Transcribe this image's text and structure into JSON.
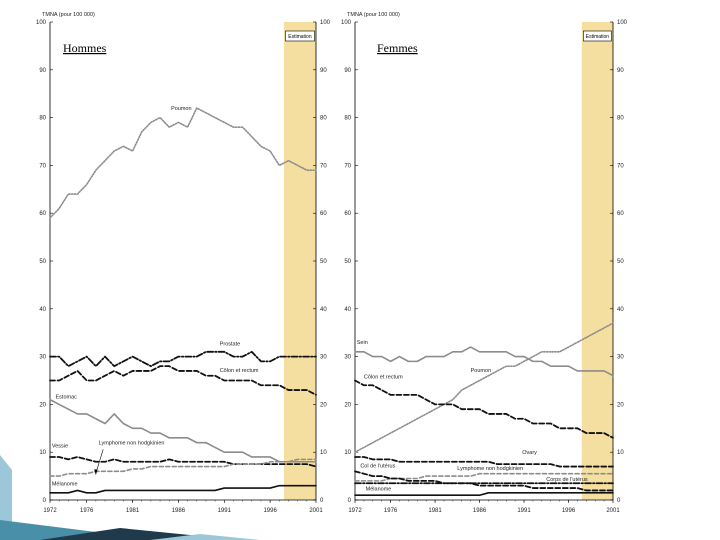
{
  "chart_data": [
    {
      "type": "line",
      "panel": "men",
      "title": "Hommes",
      "ylabel": "TMNA (pour 100 000)",
      "xlabel": "",
      "ylim": [
        0,
        100
      ],
      "yticks": [
        "0",
        "10",
        "20",
        "30",
        "40",
        "50",
        "60",
        "70",
        "80",
        "90",
        "100"
      ],
      "xticks": [
        "1972",
        "1976",
        "1981",
        "1986",
        "1991",
        "1996",
        "2001"
      ],
      "estimate_label": "Estimation",
      "estimate_range": [
        1997.5,
        2001
      ],
      "grid": false,
      "series": [
        {
          "name": "Poumon",
          "style": "dotted-light",
          "x": [
            1972,
            1973,
            1974,
            1975,
            1976,
            1977,
            1978,
            1979,
            1980,
            1981,
            1982,
            1983,
            1984,
            1985,
            1986,
            1987,
            1988,
            1989,
            1990,
            1991,
            1992,
            1993,
            1994,
            1995,
            1996,
            1997,
            1998,
            1999,
            2000,
            2001
          ],
          "values": [
            59,
            61,
            64,
            64,
            66,
            69,
            71,
            73,
            74,
            73,
            77,
            79,
            80,
            78,
            79,
            78,
            82,
            81,
            80,
            79,
            78,
            78,
            76,
            74,
            73,
            70,
            71,
            70,
            69,
            69
          ]
        },
        {
          "name": "Prostate",
          "style": "dashdot",
          "x": [
            1972,
            1973,
            1974,
            1975,
            1976,
            1977,
            1978,
            1979,
            1980,
            1981,
            1982,
            1983,
            1984,
            1985,
            1986,
            1987,
            1988,
            1989,
            1990,
            1991,
            1992,
            1993,
            1994,
            1995,
            1996,
            1997,
            1998,
            1999,
            2000,
            2001
          ],
          "values": [
            30,
            30,
            28,
            29,
            30,
            28,
            30,
            28,
            29,
            30,
            29,
            28,
            29,
            29,
            30,
            30,
            30,
            31,
            31,
            31,
            30,
            30,
            31,
            29,
            29,
            30,
            30,
            30,
            30,
            30
          ]
        },
        {
          "name": "Côlon et rectum",
          "style": "dashed-heavy",
          "x": [
            1972,
            1973,
            1974,
            1975,
            1976,
            1977,
            1978,
            1979,
            1980,
            1981,
            1982,
            1983,
            1984,
            1985,
            1986,
            1987,
            1988,
            1989,
            1990,
            1991,
            1992,
            1993,
            1994,
            1995,
            1996,
            1997,
            1998,
            1999,
            2000,
            2001
          ],
          "values": [
            25,
            25,
            26,
            27,
            25,
            25,
            26,
            27,
            26,
            27,
            27,
            27,
            28,
            28,
            27,
            27,
            27,
            26,
            26,
            25,
            25,
            25,
            25,
            24,
            24,
            24,
            23,
            23,
            23,
            22
          ]
        },
        {
          "name": "Estomac",
          "style": "solid-gray",
          "x": [
            1972,
            1973,
            1974,
            1975,
            1976,
            1977,
            1978,
            1979,
            1980,
            1981,
            1982,
            1983,
            1984,
            1985,
            1986,
            1987,
            1988,
            1989,
            1990,
            1991,
            1992,
            1993,
            1994,
            1995,
            1996,
            1997,
            1998,
            1999,
            2000,
            2001
          ],
          "values": [
            21,
            20,
            19,
            18,
            18,
            17,
            16,
            18,
            16,
            15,
            15,
            14,
            14,
            13,
            13,
            13,
            12,
            12,
            11,
            10,
            10,
            10,
            9,
            9,
            9,
            8,
            8,
            8,
            8,
            8
          ]
        },
        {
          "name": "Vessie",
          "style": "dashed-heavy",
          "x": [
            1972,
            1973,
            1974,
            1975,
            1976,
            1977,
            1978,
            1979,
            1980,
            1981,
            1982,
            1983,
            1984,
            1985,
            1986,
            1987,
            1988,
            1989,
            1990,
            1991,
            1992,
            1993,
            1994,
            1995,
            1996,
            1997,
            1998,
            1999,
            2000,
            2001
          ],
          "values": [
            9,
            9,
            8.5,
            9,
            8.5,
            8,
            8,
            8.5,
            8,
            8,
            8,
            8,
            8,
            8.5,
            8,
            8,
            8,
            8,
            8,
            8,
            7.5,
            7.5,
            7.5,
            7.5,
            7.5,
            7.5,
            7.5,
            7.5,
            7.5,
            7
          ]
        },
        {
          "name": "Lymphome non hodgkinien",
          "style": "dashed-light",
          "x": [
            1972,
            1973,
            1974,
            1975,
            1976,
            1977,
            1978,
            1979,
            1980,
            1981,
            1982,
            1983,
            1984,
            1985,
            1986,
            1987,
            1988,
            1989,
            1990,
            1991,
            1992,
            1993,
            1994,
            1995,
            1996,
            1997,
            1998,
            1999,
            2000,
            2001
          ],
          "values": [
            5,
            5,
            5.5,
            5.5,
            5.5,
            6,
            6,
            6,
            6,
            6.5,
            6.5,
            7,
            7,
            7,
            7,
            7,
            7,
            7,
            7,
            7,
            7.5,
            7.5,
            7.5,
            7.5,
            8,
            8,
            8,
            8.5,
            8.5,
            8.5
          ]
        },
        {
          "name": "Mélanome",
          "style": "solid-black",
          "x": [
            1972,
            1973,
            1974,
            1975,
            1976,
            1977,
            1978,
            1979,
            1980,
            1981,
            1982,
            1983,
            1984,
            1985,
            1986,
            1987,
            1988,
            1989,
            1990,
            1991,
            1992,
            1993,
            1994,
            1995,
            1996,
            1997,
            1998,
            1999,
            2000,
            2001
          ],
          "values": [
            1.5,
            1.5,
            1.5,
            2,
            1.5,
            1.5,
            2,
            2,
            2,
            2,
            2,
            2,
            2,
            2,
            2,
            2,
            2,
            2,
            2,
            2.5,
            2.5,
            2.5,
            2.5,
            2.5,
            2.5,
            3,
            3,
            3,
            3,
            3
          ]
        }
      ]
    },
    {
      "type": "line",
      "panel": "women",
      "title": "Femmes",
      "ylabel": "TMNA (pour 100 000)",
      "xlabel": "",
      "ylim": [
        0,
        100
      ],
      "yticks": [
        "0",
        "10",
        "20",
        "30",
        "40",
        "50",
        "60",
        "70",
        "80",
        "90",
        "100"
      ],
      "xticks": [
        "1972",
        "1976",
        "1981",
        "1986",
        "1991",
        "1996",
        "2001"
      ],
      "estimate_label": "Estimation",
      "estimate_range": [
        1997.5,
        2001
      ],
      "grid": false,
      "series": [
        {
          "name": "Sein",
          "style": "solid-gray",
          "x": [
            1972,
            1973,
            1974,
            1975,
            1976,
            1977,
            1978,
            1979,
            1980,
            1981,
            1982,
            1983,
            1984,
            1985,
            1986,
            1987,
            1988,
            1989,
            1990,
            1991,
            1992,
            1993,
            1994,
            1995,
            1996,
            1997,
            1998,
            1999,
            2000,
            2001
          ],
          "values": [
            31,
            31,
            30,
            30,
            29,
            30,
            29,
            29,
            30,
            30,
            30,
            31,
            31,
            32,
            31,
            31,
            31,
            31,
            30,
            30,
            29,
            29,
            28,
            28,
            28,
            27,
            27,
            27,
            27,
            26
          ]
        },
        {
          "name": "Poumon",
          "style": "dotted-light",
          "x": [
            1972,
            1973,
            1974,
            1975,
            1976,
            1977,
            1978,
            1979,
            1980,
            1981,
            1982,
            1983,
            1984,
            1985,
            1986,
            1987,
            1988,
            1989,
            1990,
            1991,
            1992,
            1993,
            1994,
            1995,
            1996,
            1997,
            1998,
            1999,
            2000,
            2001
          ],
          "values": [
            10,
            11,
            12,
            13,
            14,
            15,
            16,
            17,
            18,
            19,
            20,
            21,
            23,
            24,
            25,
            26,
            27,
            28,
            28,
            29,
            30,
            31,
            31,
            31,
            32,
            33,
            34,
            35,
            36,
            37
          ]
        },
        {
          "name": "Côlon et rectum",
          "style": "dashed-heavy",
          "x": [
            1972,
            1973,
            1974,
            1975,
            1976,
            1977,
            1978,
            1979,
            1980,
            1981,
            1982,
            1983,
            1984,
            1985,
            1986,
            1987,
            1988,
            1989,
            1990,
            1991,
            1992,
            1993,
            1994,
            1995,
            1996,
            1997,
            1998,
            1999,
            2000,
            2001
          ],
          "values": [
            25,
            24,
            24,
            23,
            22,
            22,
            22,
            22,
            21,
            20,
            20,
            20,
            19,
            19,
            19,
            18,
            18,
            18,
            17,
            17,
            16,
            16,
            16,
            15,
            15,
            15,
            14,
            14,
            14,
            13
          ]
        },
        {
          "name": "Ovary",
          "style": "dashed-heavy",
          "x": [
            1972,
            1973,
            1974,
            1975,
            1976,
            1977,
            1978,
            1979,
            1980,
            1981,
            1982,
            1983,
            1984,
            1985,
            1986,
            1987,
            1988,
            1989,
            1990,
            1991,
            1992,
            1993,
            1994,
            1995,
            1996,
            1997,
            1998,
            1999,
            2000,
            2001
          ],
          "values": [
            9,
            9,
            8.5,
            8.5,
            8.5,
            8,
            8,
            8,
            8,
            8,
            8,
            8,
            8,
            8,
            8,
            8,
            7.5,
            7.5,
            7.5,
            7.5,
            7.5,
            7.5,
            7.5,
            7,
            7,
            7,
            7,
            7,
            7,
            7
          ]
        },
        {
          "name": "Lymphome non hodgkinien",
          "style": "dashed-light",
          "x": [
            1972,
            1973,
            1974,
            1975,
            1976,
            1977,
            1978,
            1979,
            1980,
            1981,
            1982,
            1983,
            1984,
            1985,
            1986,
            1987,
            1988,
            1989,
            1990,
            1991,
            1992,
            1993,
            1994,
            1995,
            1996,
            1997,
            1998,
            1999,
            2000,
            2001
          ],
          "values": [
            4,
            4,
            4,
            4,
            4.5,
            4.5,
            4.5,
            4.5,
            5,
            5,
            5,
            5,
            5,
            5,
            5.5,
            5.5,
            5.5,
            5.5,
            5.5,
            5.5,
            5.5,
            5.5,
            5.5,
            5.5,
            5.5,
            5.5,
            5.5,
            5.5,
            5.5,
            5.5
          ]
        },
        {
          "name": "Col de l'utérus",
          "style": "dashed-heavy",
          "x": [
            1972,
            1973,
            1974,
            1975,
            1976,
            1977,
            1978,
            1979,
            1980,
            1981,
            1982,
            1983,
            1984,
            1985,
            1986,
            1987,
            1988,
            1989,
            1990,
            1991,
            1992,
            1993,
            1994,
            1995,
            1996,
            1997,
            1998,
            1999,
            2000,
            2001
          ],
          "values": [
            6,
            5.5,
            5,
            5,
            4.5,
            4.5,
            4,
            4,
            4,
            4,
            3.5,
            3.5,
            3.5,
            3.5,
            3,
            3,
            3,
            3,
            3,
            3,
            2.5,
            2.5,
            2.5,
            2.5,
            2.5,
            2.5,
            2,
            2,
            2,
            2
          ]
        },
        {
          "name": "Corps de l'utérus",
          "style": "dashdot",
          "x": [
            1972,
            1973,
            1974,
            1975,
            1976,
            1977,
            1978,
            1979,
            1980,
            1981,
            1982,
            1983,
            1984,
            1985,
            1986,
            1987,
            1988,
            1989,
            1990,
            1991,
            1992,
            1993,
            1994,
            1995,
            1996,
            1997,
            1998,
            1999,
            2000,
            2001
          ],
          "values": [
            3.5,
            3.5,
            3.5,
            3.5,
            3.5,
            3.5,
            3.5,
            3.5,
            3.5,
            3.5,
            3.5,
            3.5,
            3.5,
            3.5,
            3.5,
            3.5,
            3.5,
            3.5,
            3.5,
            3.5,
            3.5,
            3.5,
            3.5,
            3.5,
            3.5,
            3.5,
            3.5,
            3.5,
            3.5,
            3.5
          ]
        },
        {
          "name": "Mélanome",
          "style": "solid-black",
          "x": [
            1972,
            1973,
            1974,
            1975,
            1976,
            1977,
            1978,
            1979,
            1980,
            1981,
            1982,
            1983,
            1984,
            1985,
            1986,
            1987,
            1988,
            1989,
            1990,
            1991,
            1992,
            1993,
            1994,
            1995,
            1996,
            1997,
            1998,
            1999,
            2000,
            2001
          ],
          "values": [
            1,
            1,
            1,
            1,
            1,
            1,
            1,
            1,
            1,
            1,
            1,
            1,
            1,
            1,
            1,
            1.5,
            1.5,
            1.5,
            1.5,
            1.5,
            1.5,
            1.5,
            1.5,
            1.5,
            1.5,
            1.5,
            1.5,
            1.5,
            1.5,
            1.5
          ]
        }
      ]
    }
  ],
  "labels": {
    "men": {
      "poumon": "Poumon",
      "prostate": "Prostate",
      "colon": "Côlon et rectum",
      "estomac": "Estomac",
      "vessie": "Vessie",
      "lymphome": "Lymphome non hodgkinien",
      "melanome": "Mélanome"
    },
    "women": {
      "sein": "Sein",
      "poumon": "Poumon",
      "colon": "Côlon et rectum",
      "ovary": "Ovary",
      "col": "Col de l'utérus",
      "lymphome": "Lymphome non hodgkinien",
      "corps": "Corps de l'utérus",
      "melanome": "Mélanome"
    }
  },
  "colors": {
    "estimate_band": "#f5dfa0",
    "dark": "#111111",
    "gray": "#8c8c8c",
    "deco_dark": "#1f3a4a",
    "deco_teal": "#4a8fa8",
    "deco_light": "#9cc7d8"
  }
}
